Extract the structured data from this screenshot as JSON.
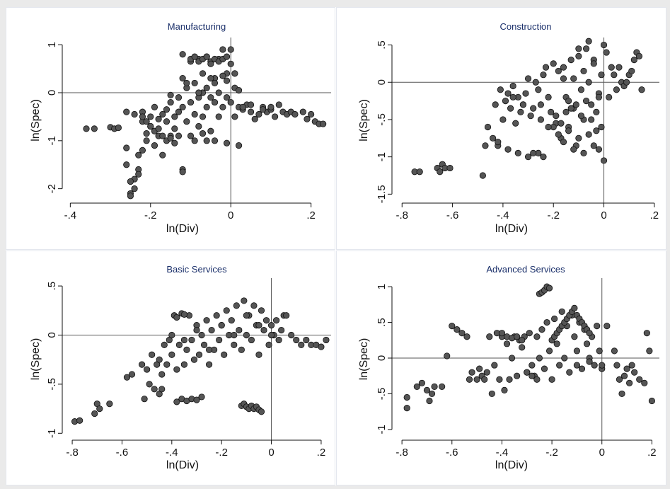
{
  "chart_data": [
    {
      "type": "scatter",
      "title": "Manufacturing",
      "xlabel": "ln(Div)",
      "ylabel": "ln(Spec)",
      "xticks": [
        -0.4,
        -0.2,
        0,
        0.2
      ],
      "xtick_labels": [
        "-.4",
        "-.2",
        "0",
        ".2"
      ],
      "yticks": [
        -2,
        -1,
        0,
        1
      ],
      "ytick_labels": [
        "-2",
        "-1",
        "0",
        "1"
      ],
      "xlim": [
        -0.42,
        0.25
      ],
      "ylim": [
        -2.3,
        1.15
      ],
      "reference_lines": {
        "x": 0,
        "y": 0
      },
      "marker_fill": "#555555",
      "marker_edge": "#111111",
      "x": [
        -0.36,
        -0.34,
        -0.3,
        -0.29,
        -0.28,
        -0.26,
        -0.26,
        -0.25,
        -0.25,
        -0.24,
        -0.24,
        -0.23,
        -0.23,
        -0.22,
        -0.22,
        -0.22,
        -0.21,
        -0.21,
        -0.2,
        -0.2,
        -0.19,
        -0.19,
        -0.18,
        -0.18,
        -0.17,
        -0.17,
        -0.16,
        -0.16,
        -0.15,
        -0.15,
        -0.14,
        -0.14,
        -0.13,
        -0.13,
        -0.12,
        -0.12,
        -0.12,
        -0.11,
        -0.11,
        -0.1,
        -0.1,
        -0.1,
        -0.09,
        -0.09,
        -0.08,
        -0.08,
        -0.08,
        -0.07,
        -0.07,
        -0.07,
        -0.06,
        -0.06,
        -0.06,
        -0.05,
        -0.05,
        -0.05,
        -0.04,
        -0.04,
        -0.04,
        -0.03,
        -0.03,
        -0.03,
        -0.02,
        -0.02,
        -0.01,
        -0.01,
        -0.01,
        0,
        0,
        0.01,
        0.01,
        0.02,
        0.02,
        0.03,
        0.04,
        0.05,
        0.06,
        0.07,
        0.08,
        0.09,
        0.1,
        0.11,
        0.12,
        0.13,
        0.14,
        0.15,
        0.16,
        0.18,
        0.19,
        0.2,
        0.21,
        0.22,
        0.23,
        -0.1,
        -0.09,
        -0.08,
        -0.07,
        -0.06,
        -0.05,
        -0.04,
        -0.03,
        -0.02,
        -0.01,
        0,
        -0.12,
        -0.11,
        -0.05,
        -0.04,
        -0.02,
        -0.01,
        0.01,
        0.02,
        -0.26,
        -0.24,
        -0.22,
        -0.21,
        -0.2,
        -0.19,
        -0.18,
        -0.17,
        -0.16,
        -0.15,
        -0.14,
        -0.13,
        -0.09,
        -0.07,
        -0.06,
        0.03,
        0.05,
        0.08,
        0.1,
        -0.25,
        -0.23,
        -0.12,
        -0.15,
        -0.08
      ],
      "y": [
        -0.75,
        -0.75,
        -0.72,
        -0.75,
        -0.73,
        -1.15,
        -1.5,
        -2.1,
        -2.15,
        -2.0,
        -1.8,
        -1.6,
        -1.3,
        -1.2,
        -0.6,
        -0.4,
        -1.0,
        -0.85,
        -0.5,
        -0.7,
        -0.3,
        -1.1,
        -0.55,
        -0.9,
        -0.45,
        -1.3,
        -0.35,
        -0.6,
        -0.9,
        -0.2,
        -0.5,
        -0.75,
        -0.1,
        -0.4,
        0.8,
        -1.6,
        -0.3,
        0.1,
        -0.6,
        0.65,
        -0.2,
        -0.9,
        0.2,
        -0.45,
        0.7,
        -0.1,
        -0.7,
        0.4,
        0.0,
        -0.5,
        0.75,
        0.1,
        -0.3,
        0.65,
        -0.1,
        -0.8,
        0.3,
        -0.2,
        -1.0,
        0.7,
        0.0,
        -0.5,
        0.9,
        -0.3,
        0.4,
        -0.1,
        -1.05,
        0.9,
        -0.2,
        0.4,
        -0.5,
        -0.3,
        -1.1,
        -0.35,
        -0.25,
        -0.4,
        -0.55,
        -0.45,
        -0.3,
        -0.4,
        -0.35,
        -0.5,
        -0.25,
        -0.4,
        -0.45,
        -0.4,
        -0.45,
        -0.4,
        -0.55,
        -0.45,
        -0.6,
        -0.65,
        -0.65,
        0.7,
        0.75,
        0.65,
        0.7,
        0.75,
        0.6,
        0.7,
        0.65,
        0.7,
        0.75,
        0.6,
        0.3,
        0.2,
        0.3,
        0.2,
        0.35,
        0.25,
        0.1,
        0.05,
        -0.4,
        -0.45,
        -0.5,
        -0.6,
        -0.7,
        -0.8,
        -0.75,
        -0.9,
        -1.0,
        -0.95,
        -1.05,
        -0.9,
        -1.0,
        -0.85,
        -1.0,
        -0.3,
        -0.25,
        -0.35,
        -0.3,
        -1.85,
        -1.7,
        -1.65,
        -0.05,
        0.0
      ]
    },
    {
      "type": "scatter",
      "title": "Construction",
      "xlabel": "ln(Div)",
      "ylabel": "ln(Spec)",
      "xticks": [
        -0.8,
        -0.6,
        -0.4,
        -0.2,
        0,
        0.2
      ],
      "xtick_labels": [
        "-.8",
        "-.6",
        "-.4",
        "-.2",
        "0",
        ".2"
      ],
      "yticks": [
        -1.5,
        -1,
        -0.5,
        0,
        0.5
      ],
      "ytick_labels": [
        "-1.5",
        "-1",
        "-.5",
        "0",
        ".5"
      ],
      "xlim": [
        -0.84,
        0.22
      ],
      "ylim": [
        -1.62,
        0.6
      ],
      "reference_lines": {
        "x": 0,
        "y": 0
      },
      "marker_fill": "#555555",
      "marker_edge": "#111111",
      "x": [
        -0.75,
        -0.73,
        -0.66,
        -0.65,
        -0.64,
        -0.63,
        -0.61,
        -0.48,
        -0.47,
        -0.46,
        -0.44,
        -0.43,
        -0.42,
        -0.41,
        -0.4,
        -0.39,
        -0.38,
        -0.37,
        -0.36,
        -0.35,
        -0.34,
        -0.33,
        -0.32,
        -0.31,
        -0.3,
        -0.29,
        -0.28,
        -0.27,
        -0.26,
        -0.25,
        -0.24,
        -0.23,
        -0.22,
        -0.21,
        -0.2,
        -0.19,
        -0.18,
        -0.17,
        -0.16,
        -0.15,
        -0.14,
        -0.13,
        -0.12,
        -0.11,
        -0.1,
        -0.09,
        -0.08,
        -0.07,
        -0.06,
        -0.05,
        -0.04,
        -0.03,
        -0.02,
        -0.01,
        0,
        0.01,
        0.02,
        0.03,
        0.04,
        0.05,
        0.07,
        0.08,
        0.1,
        0.11,
        0.12,
        0.13,
        0.14,
        0.15,
        -0.2,
        -0.18,
        -0.16,
        -0.14,
        -0.12,
        -0.1,
        -0.08,
        -0.06,
        -0.04,
        -0.02,
        -0.25,
        -0.22,
        -0.19,
        -0.17,
        -0.15,
        -0.13,
        -0.11,
        -0.09,
        -0.07,
        -0.05,
        -0.03,
        -0.01,
        -0.42,
        -0.38,
        -0.34,
        -0.3,
        -0.28,
        -0.24,
        -0.36,
        -0.32,
        -0.26,
        -0.12,
        -0.08,
        -0.04,
        0.0,
        0.06,
        0.09,
        -0.1,
        -0.06,
        -0.02,
        -0.14,
        -0.16
      ],
      "y": [
        -1.2,
        -1.2,
        -1.15,
        -1.2,
        -1.1,
        -1.15,
        -1.15,
        -1.25,
        -0.85,
        -0.6,
        -0.75,
        -0.3,
        -0.85,
        -0.1,
        -0.5,
        -0.25,
        -0.15,
        -0.35,
        -0.05,
        -0.55,
        -0.2,
        -0.4,
        -0.3,
        -0.15,
        0.05,
        -0.45,
        -0.35,
        0.0,
        -0.95,
        -0.3,
        0.1,
        0.2,
        -0.2,
        -0.4,
        0.25,
        -0.55,
        0.15,
        -0.75,
        0.05,
        -0.2,
        -0.6,
        0.3,
        -0.35,
        -0.85,
        0.35,
        -0.1,
        -0.5,
        0.45,
        0.0,
        -0.3,
        0.3,
        -0.65,
        -0.15,
        0.1,
        -1.05,
        0.4,
        -0.2,
        0.2,
        0.1,
        -0.1,
        0.0,
        -0.05,
        0.1,
        0.15,
        0.3,
        0.4,
        0.35,
        -0.1,
        -0.6,
        -0.7,
        -0.8,
        -0.65,
        -0.9,
        -0.75,
        -0.95,
        -0.7,
        -0.85,
        -0.9,
        -0.5,
        -0.6,
        -0.45,
        -0.55,
        -0.4,
        -0.35,
        -0.3,
        -0.45,
        -0.25,
        -0.5,
        -0.4,
        -0.6,
        -0.8,
        -0.9,
        -0.95,
        -1.0,
        -0.95,
        -1.0,
        -0.2,
        -0.3,
        -0.1,
        0.05,
        0.15,
        0.25,
        0.5,
        0.2,
        0.0,
        0.45,
        0.55,
        -0.2,
        -0.25,
        0.2
      ]
    },
    {
      "type": "scatter",
      "title": "Basic Services",
      "xlabel": "ln(Div)",
      "ylabel": "ln(Spec)",
      "xticks": [
        -0.8,
        -0.6,
        -0.4,
        -0.2,
        0,
        0.2
      ],
      "xtick_labels": [
        "-.8",
        "-.6",
        "-.4",
        "-.2",
        "0",
        ".2"
      ],
      "yticks": [
        -1,
        -0.5,
        0,
        0.5
      ],
      "ytick_labels": [
        "-1",
        "-.5",
        "0",
        ".5"
      ],
      "xlim": [
        -0.84,
        0.24
      ],
      "ylim": [
        -1.07,
        0.58
      ],
      "reference_lines": {
        "x": 0,
        "y": 0
      },
      "marker_fill": "#555555",
      "marker_edge": "#111111",
      "x": [
        -0.79,
        -0.77,
        -0.71,
        -0.7,
        -0.69,
        -0.65,
        -0.58,
        -0.56,
        -0.52,
        -0.51,
        -0.5,
        -0.49,
        -0.48,
        -0.47,
        -0.46,
        -0.45,
        -0.44,
        -0.43,
        -0.42,
        -0.41,
        -0.4,
        -0.39,
        -0.38,
        -0.37,
        -0.36,
        -0.35,
        -0.34,
        -0.33,
        -0.32,
        -0.31,
        -0.3,
        -0.29,
        -0.28,
        -0.27,
        -0.26,
        -0.25,
        -0.24,
        -0.23,
        -0.22,
        -0.21,
        -0.2,
        -0.19,
        -0.18,
        -0.17,
        -0.16,
        -0.15,
        -0.14,
        -0.13,
        -0.12,
        -0.11,
        -0.1,
        -0.09,
        -0.08,
        -0.07,
        -0.06,
        -0.05,
        -0.04,
        -0.03,
        -0.02,
        -0.01,
        0,
        0.01,
        0.02,
        0.03,
        0.04,
        0.05,
        0.06,
        0.08,
        0.1,
        0.12,
        0.14,
        0.16,
        0.18,
        0.2,
        0.22,
        -0.38,
        -0.36,
        -0.34,
        -0.32,
        -0.3,
        -0.28,
        -0.12,
        -0.11,
        -0.1,
        -0.09,
        -0.08,
        -0.07,
        -0.06,
        -0.05,
        -0.04,
        -0.4,
        -0.35,
        -0.3,
        -0.25,
        -0.2,
        -0.15,
        -0.1,
        -0.05,
        0.0,
        -0.45,
        -0.44,
        -0.38,
        -0.35
      ],
      "y": [
        -0.88,
        -0.87,
        -0.8,
        -0.7,
        -0.75,
        -0.7,
        -0.43,
        -0.4,
        -0.3,
        -0.65,
        -0.35,
        -0.5,
        -0.2,
        -0.55,
        -0.3,
        -0.25,
        -0.4,
        -0.1,
        -0.3,
        -0.05,
        -0.2,
        0.2,
        -0.35,
        -0.1,
        0.22,
        -0.3,
        -0.15,
        0.2,
        -0.05,
        -0.25,
        0.1,
        -0.2,
        0.0,
        -0.1,
        0.15,
        -0.3,
        0.05,
        -0.15,
        0.2,
        -0.05,
        0.1,
        -0.2,
        0.25,
        0.0,
        0.15,
        -0.1,
        0.3,
        0.05,
        -0.15,
        0.35,
        0.0,
        0.2,
        -0.05,
        0.3,
        0.1,
        -0.2,
        0.25,
        0.05,
        0.15,
        -0.1,
        0.1,
        0.0,
        0.15,
        -0.05,
        0.05,
        0.2,
        0.2,
        0.0,
        -0.05,
        -0.1,
        -0.05,
        -0.1,
        -0.1,
        -0.12,
        -0.05,
        -0.68,
        -0.65,
        -0.67,
        -0.65,
        -0.66,
        -0.63,
        -0.72,
        -0.7,
        -0.73,
        -0.75,
        -0.72,
        -0.75,
        -0.73,
        -0.76,
        -0.78,
        0.0,
        -0.05,
        0.05,
        -0.15,
        0.1,
        0.0,
        0.2,
        0.1,
        0.0,
        -0.6,
        -0.55,
        0.18,
        0.21
      ]
    },
    {
      "type": "scatter",
      "title": "Advanced Services",
      "xlabel": "ln(Div)",
      "ylabel": "ln(Spec)",
      "xticks": [
        -0.8,
        -0.6,
        -0.4,
        -0.2,
        0,
        0.2
      ],
      "xtick_labels": [
        "-.8",
        "-.6",
        "-.4",
        "-.2",
        "0",
        ".2"
      ],
      "yticks": [
        -1,
        -0.5,
        0,
        0.5,
        1
      ],
      "ytick_labels": [
        "-1",
        "-.5",
        "0",
        ".5",
        "1"
      ],
      "xlim": [
        -0.84,
        0.23
      ],
      "ylim": [
        -1.15,
        1.12
      ],
      "reference_lines": {
        "x": 0,
        "y": 0
      },
      "marker_fill": "#555555",
      "marker_edge": "#111111",
      "x": [
        -0.78,
        -0.78,
        -0.74,
        -0.72,
        -0.7,
        -0.69,
        -0.68,
        -0.67,
        -0.64,
        -0.62,
        -0.6,
        -0.58,
        -0.56,
        -0.54,
        -0.53,
        -0.52,
        -0.5,
        -0.49,
        -0.48,
        -0.47,
        -0.46,
        -0.45,
        -0.44,
        -0.43,
        -0.42,
        -0.41,
        -0.4,
        -0.39,
        -0.38,
        -0.37,
        -0.36,
        -0.35,
        -0.34,
        -0.33,
        -0.32,
        -0.31,
        -0.3,
        -0.29,
        -0.28,
        -0.27,
        -0.26,
        -0.25,
        -0.24,
        -0.23,
        -0.22,
        -0.21,
        -0.2,
        -0.19,
        -0.18,
        -0.17,
        -0.16,
        -0.15,
        -0.14,
        -0.13,
        -0.12,
        -0.11,
        -0.1,
        -0.09,
        -0.08,
        -0.07,
        -0.06,
        -0.05,
        -0.04,
        -0.03,
        -0.02,
        -0.01,
        0,
        0.02,
        0.05,
        0.06,
        0.07,
        0.08,
        0.09,
        0.1,
        0.11,
        0.12,
        0.13,
        0.15,
        0.17,
        0.18,
        0.19,
        0.2,
        -0.25,
        -0.24,
        -0.23,
        -0.22,
        -0.21,
        -0.2,
        -0.19,
        -0.18,
        -0.17,
        -0.16,
        -0.15,
        -0.14,
        -0.13,
        -0.12,
        -0.11,
        -0.1,
        -0.09,
        -0.08,
        -0.07,
        -0.06,
        -0.05,
        -0.3,
        -0.28,
        -0.26,
        -0.1,
        -0.05,
        0.0,
        -0.4,
        -0.38,
        -0.36,
        -0.34,
        -0.32
      ],
      "y": [
        -0.7,
        -0.55,
        -0.4,
        -0.35,
        -0.45,
        -0.6,
        -0.5,
        -0.4,
        -0.4,
        0.03,
        0.45,
        0.4,
        0.35,
        0.3,
        -0.3,
        -0.2,
        -0.3,
        -0.15,
        -0.25,
        -0.3,
        -0.2,
        0.3,
        -0.5,
        -0.1,
        0.35,
        -0.3,
        0.3,
        -0.45,
        0.2,
        -0.3,
        0.0,
        0.3,
        -0.25,
        0.25,
        0.15,
        0.3,
        -0.2,
        0.35,
        -0.1,
        -0.25,
        0.3,
        0.0,
        0.4,
        -0.15,
        0.5,
        0.1,
        -0.3,
        0.55,
        0.2,
        -0.1,
        0.65,
        0.0,
        0.45,
        -0.2,
        0.6,
        0.3,
        0.1,
        0.5,
        -0.15,
        0.4,
        0.2,
        0.0,
        0.3,
        -0.1,
        0.45,
        0.1,
        -0.15,
        0.45,
        0.1,
        -0.1,
        -0.3,
        -0.5,
        -0.25,
        -0.15,
        -0.35,
        -0.1,
        -0.2,
        -0.3,
        -0.35,
        0.35,
        0.1,
        -0.6,
        0.9,
        0.92,
        0.95,
        1.0,
        0.98,
        0.25,
        0.3,
        0.35,
        0.4,
        0.45,
        0.5,
        0.55,
        0.6,
        0.65,
        0.7,
        0.6,
        0.55,
        0.5,
        0.45,
        0.4,
        0.35,
        -0.2,
        -0.25,
        -0.3,
        -0.1,
        -0.05,
        -0.1,
        0.35,
        0.3,
        0.28,
        0.3,
        0.25
      ]
    }
  ]
}
